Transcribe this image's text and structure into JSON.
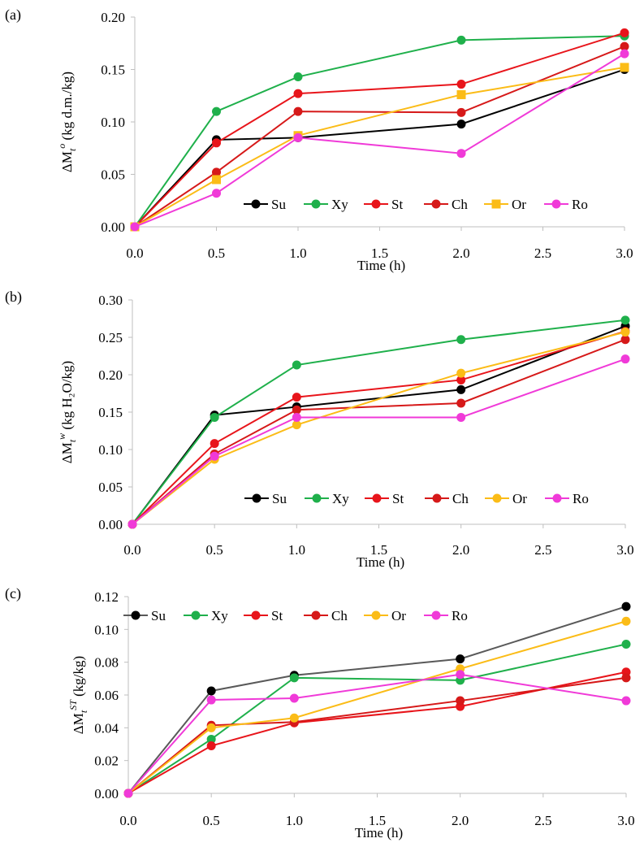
{
  "chart_data": [
    {
      "type": "line",
      "panel_label": "(a)",
      "ylabel_prefix": "ΔM",
      "ylabel_sub": "t",
      "ylabel_sup": "o",
      "ylabel_suffix": " (kg d.m./kg)",
      "xlabel": "Time (h)",
      "x": [
        0.0,
        0.5,
        1.0,
        2.0,
        3.0
      ],
      "x_ticks": [
        "0.0",
        "0.5",
        "1.0",
        "1.5",
        "2.0",
        "2.5",
        "3.0"
      ],
      "x_tick_values": [
        0,
        0.5,
        1.0,
        1.5,
        2.0,
        2.5,
        3.0
      ],
      "y_ticks": [
        "0.00",
        "0.05",
        "0.10",
        "0.15",
        "0.20"
      ],
      "y_tick_values": [
        0,
        0.05,
        0.1,
        0.15,
        0.2
      ],
      "xlim": [
        0,
        3.0
      ],
      "ylim": [
        0,
        0.2
      ],
      "legend_position": "bottom-right",
      "series": [
        {
          "name": "Su",
          "color": "#000000",
          "marker": "circle",
          "values": [
            0,
            0.083,
            0.085,
            0.098,
            0.15
          ]
        },
        {
          "name": "Xy",
          "color": "#1fb04b",
          "marker": "circle",
          "values": [
            0,
            0.11,
            0.143,
            0.178,
            0.182
          ]
        },
        {
          "name": "St",
          "color": "#e8151b",
          "marker": "circle",
          "values": [
            0,
            0.08,
            0.127,
            0.136,
            0.185
          ]
        },
        {
          "name": "Ch",
          "color": "#d61919",
          "marker": "circle",
          "values": [
            0,
            0.052,
            0.11,
            0.109,
            0.172
          ]
        },
        {
          "name": "Or",
          "color": "#fbbc17",
          "marker": "square",
          "values": [
            0,
            0.045,
            0.087,
            0.126,
            0.152
          ]
        },
        {
          "name": "Ro",
          "color": "#f03ad8",
          "marker": "circle",
          "values": [
            0,
            0.032,
            0.085,
            0.07,
            0.165
          ]
        }
      ]
    },
    {
      "type": "line",
      "panel_label": "(b)",
      "ylabel_prefix": "ΔM",
      "ylabel_sub": "t",
      "ylabel_sup": "w",
      "ylabel_suffix": " (kg H₂O/kg)",
      "xlabel": "Time (h)",
      "x": [
        0.0,
        0.5,
        1.0,
        2.0,
        3.0
      ],
      "x_ticks": [
        "0.0",
        "0.5",
        "1.0",
        "1.5",
        "2.0",
        "2.5",
        "3.0"
      ],
      "x_tick_values": [
        0,
        0.5,
        1.0,
        1.5,
        2.0,
        2.5,
        3.0
      ],
      "y_ticks": [
        "0.00",
        "0.05",
        "0.10",
        "0.15",
        "0.20",
        "0.25",
        "0.30"
      ],
      "y_tick_values": [
        0,
        0.05,
        0.1,
        0.15,
        0.2,
        0.25,
        0.3
      ],
      "xlim": [
        0,
        3.0
      ],
      "ylim": [
        0,
        0.3
      ],
      "legend_position": "bottom-right",
      "series": [
        {
          "name": "Su",
          "color": "#000000",
          "marker": "circle",
          "values": [
            0,
            0.146,
            0.157,
            0.18,
            0.265
          ]
        },
        {
          "name": "Xy",
          "color": "#1fb04b",
          "marker": "circle",
          "values": [
            0,
            0.143,
            0.213,
            0.247,
            0.273
          ]
        },
        {
          "name": "St",
          "color": "#e8151b",
          "marker": "circle",
          "values": [
            0,
            0.108,
            0.17,
            0.193,
            0.258
          ]
        },
        {
          "name": "Ch",
          "color": "#d61919",
          "marker": "circle",
          "values": [
            0,
            0.094,
            0.153,
            0.162,
            0.247
          ]
        },
        {
          "name": "Or",
          "color": "#fbbc17",
          "marker": "circle",
          "values": [
            0,
            0.087,
            0.133,
            0.202,
            0.257
          ]
        },
        {
          "name": "Ro",
          "color": "#f03ad8",
          "marker": "circle",
          "values": [
            0,
            0.091,
            0.143,
            0.143,
            0.221
          ]
        }
      ]
    },
    {
      "type": "line",
      "panel_label": "(c)",
      "ylabel_prefix": "ΔM",
      "ylabel_sub": "t",
      "ylabel_sup": "ST",
      "ylabel_suffix": " (kg/kg)",
      "xlabel": "Time  (h)",
      "x": [
        0.0,
        0.5,
        1.0,
        2.0,
        3.0
      ],
      "x_ticks": [
        "0.0",
        "0.5",
        "1.0",
        "1.5",
        "2.0",
        "2.5",
        "3.0"
      ],
      "x_tick_values": [
        0,
        0.5,
        1.0,
        1.5,
        2.0,
        2.5,
        3.0
      ],
      "y_ticks": [
        "0.00",
        "0.02",
        "0.04",
        "0.06",
        "0.08",
        "0.10",
        "0.12"
      ],
      "y_tick_values": [
        0,
        0.02,
        0.04,
        0.06,
        0.08,
        0.1,
        0.12
      ],
      "xlim": [
        0,
        3.0
      ],
      "ylim": [
        0,
        0.12
      ],
      "legend_position": "top",
      "series": [
        {
          "name": "Su",
          "color": "#000000",
          "line_color": "#595959",
          "marker": "circle",
          "values": [
            0,
            0.0625,
            0.072,
            0.082,
            0.114
          ]
        },
        {
          "name": "Xy",
          "color": "#1fb04b",
          "marker": "circle",
          "values": [
            0,
            0.033,
            0.0705,
            0.069,
            0.091
          ]
        },
        {
          "name": "St",
          "color": "#e8151b",
          "marker": "circle",
          "values": [
            0,
            0.029,
            0.043,
            0.053,
            0.074
          ]
        },
        {
          "name": "Ch",
          "color": "#d61919",
          "marker": "circle",
          "values": [
            0,
            0.0415,
            0.0435,
            0.0565,
            0.0705
          ]
        },
        {
          "name": "Or",
          "color": "#fbbc17",
          "marker": "circle",
          "values": [
            0,
            0.04,
            0.046,
            0.076,
            0.105
          ]
        },
        {
          "name": "Ro",
          "color": "#f03ad8",
          "marker": "circle",
          "values": [
            0,
            0.057,
            0.058,
            0.0725,
            0.0565
          ]
        }
      ]
    }
  ]
}
